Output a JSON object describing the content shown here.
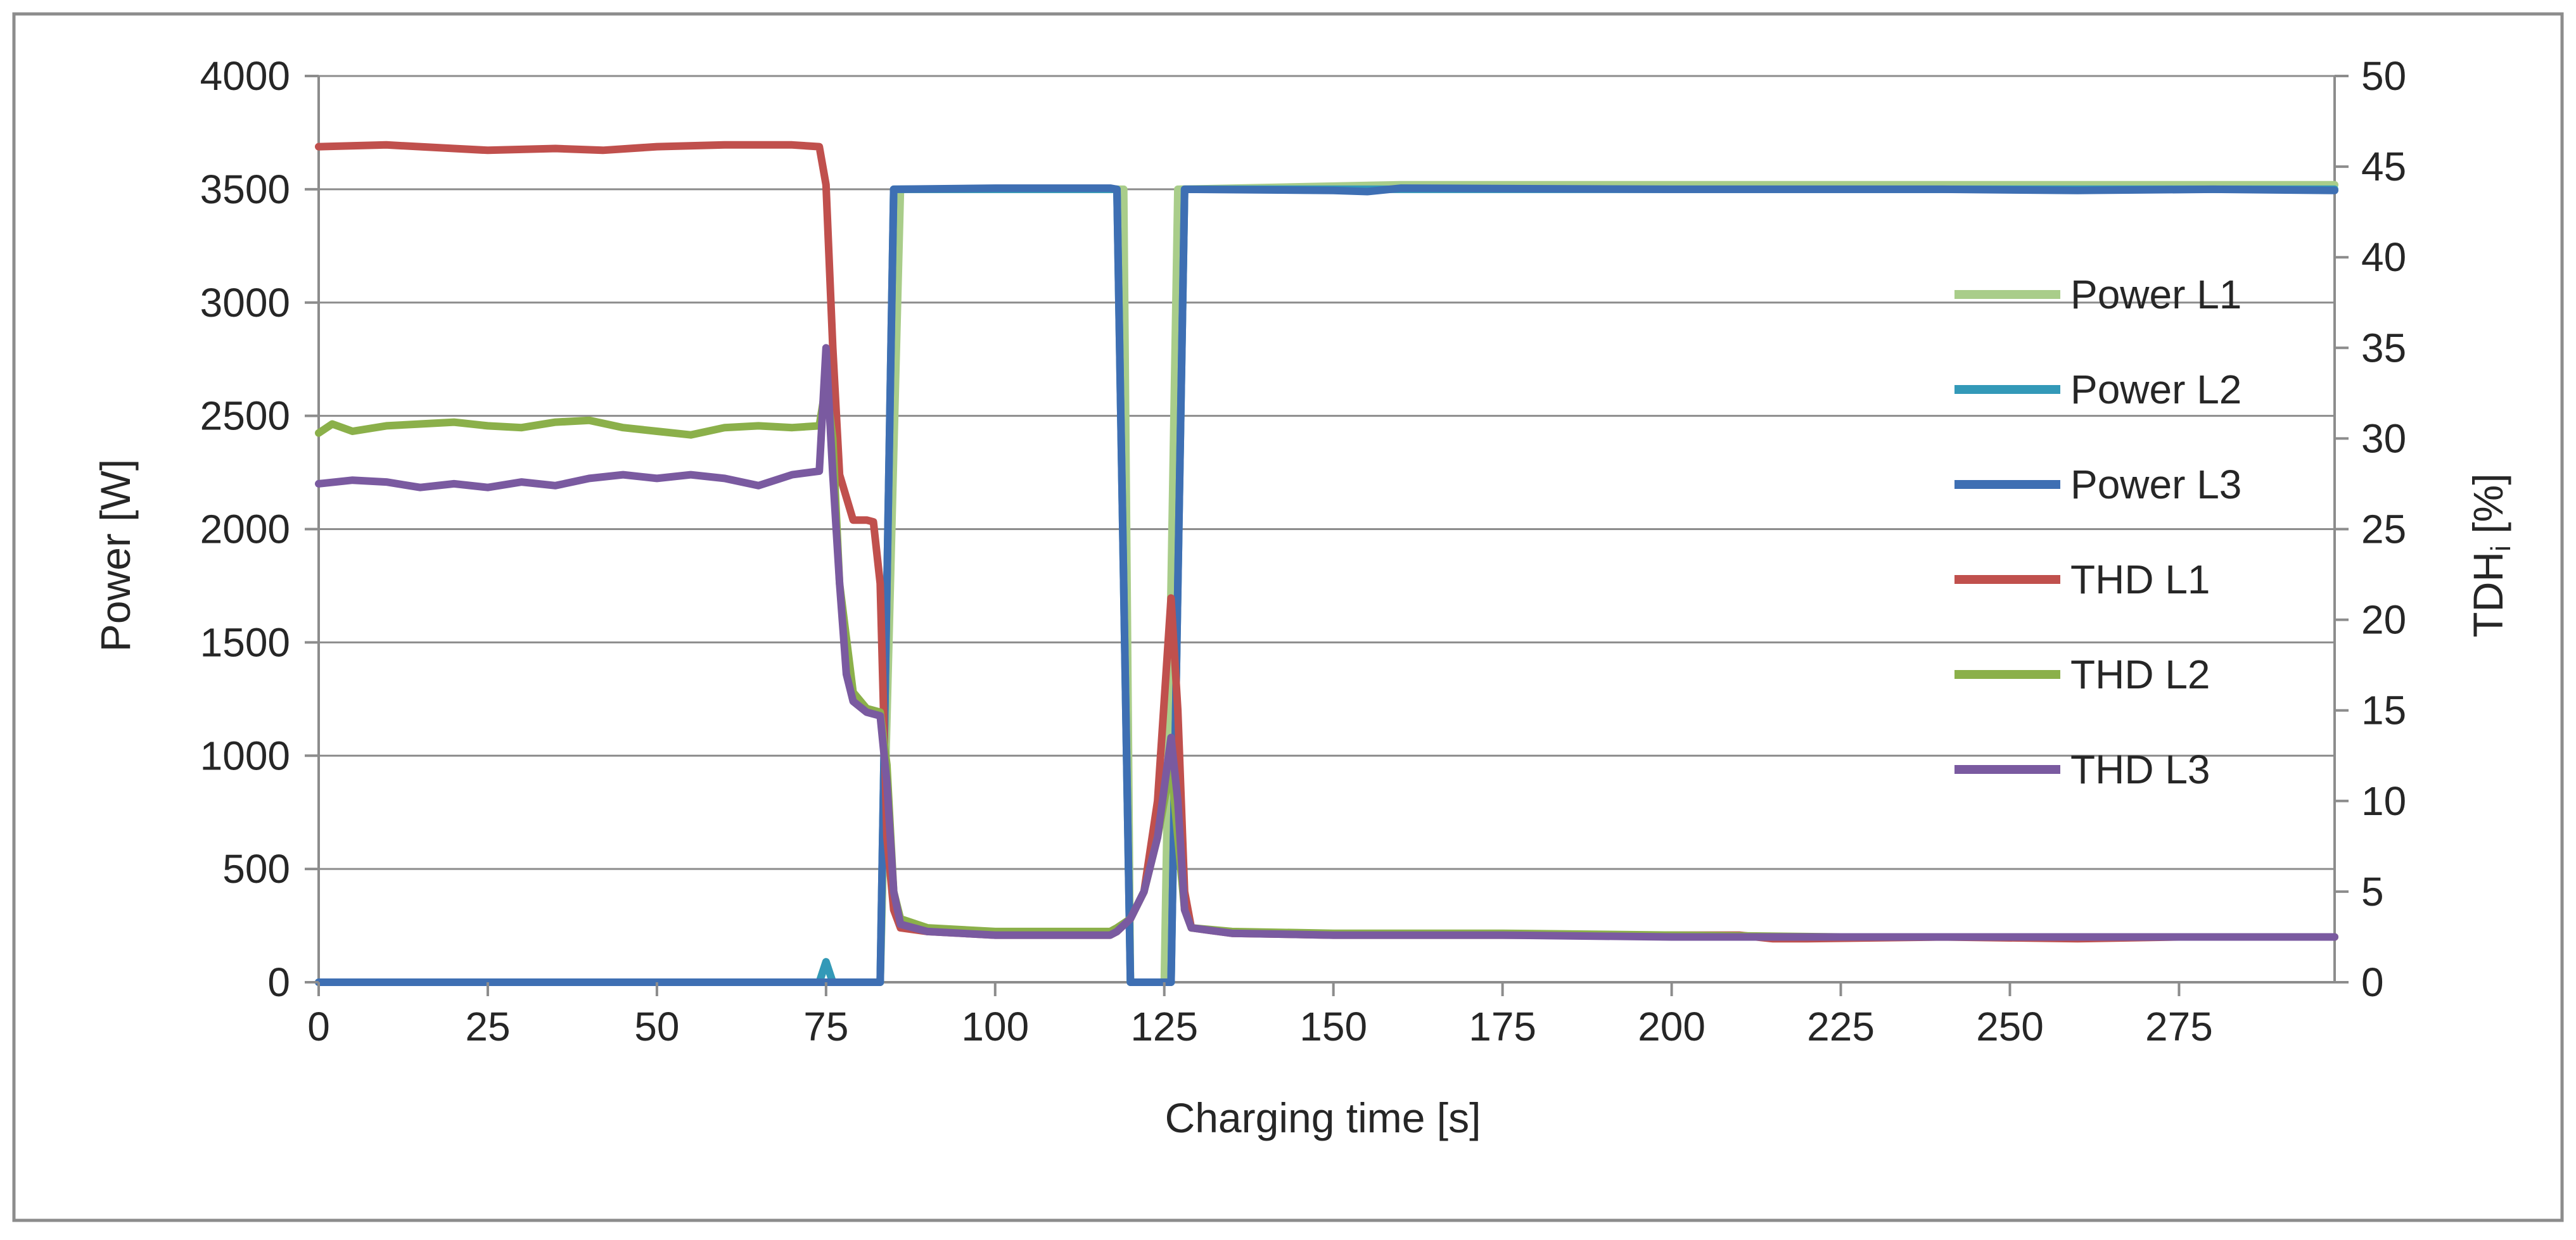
{
  "chart_data": {
    "type": "line",
    "title": "",
    "xlabel": "Charging time [s]",
    "ylabel_left": "Power  [W]",
    "ylabel_right_main": "TDH",
    "ylabel_right_sub": "i",
    "ylabel_right_unit": "  [%]",
    "xlim": [
      0,
      298
    ],
    "ylim_left": [
      0,
      4000
    ],
    "ylim_right": [
      0,
      50
    ],
    "x_ticks": [
      0,
      25,
      50,
      75,
      100,
      125,
      150,
      175,
      200,
      225,
      250,
      275
    ],
    "y_left_ticks": [
      0,
      500,
      1000,
      1500,
      2000,
      2500,
      3000,
      3500,
      4000
    ],
    "y_right_ticks": [
      0,
      5,
      10,
      15,
      20,
      25,
      30,
      35,
      40,
      45,
      50
    ],
    "grid": "horizontal",
    "legend_position": "right",
    "series": [
      {
        "name": "Power L1",
        "axis": "left",
        "color": "#a9cd8a",
        "points": [
          [
            0,
            0
          ],
          [
            74,
            0
          ],
          [
            75,
            90
          ],
          [
            76,
            0
          ],
          [
            83,
            0
          ],
          [
            86,
            3500
          ],
          [
            119,
            3500
          ],
          [
            120,
            0
          ],
          [
            125,
            0
          ],
          [
            127,
            3500
          ],
          [
            160,
            3520
          ],
          [
            298,
            3520
          ]
        ]
      },
      {
        "name": "Power L2",
        "axis": "left",
        "color": "#3399b8",
        "points": [
          [
            0,
            0
          ],
          [
            74,
            0
          ],
          [
            75,
            90
          ],
          [
            76,
            0
          ],
          [
            83,
            0
          ],
          [
            85,
            3500
          ],
          [
            118,
            3500
          ],
          [
            120,
            0
          ],
          [
            126,
            0
          ],
          [
            128,
            3500
          ],
          [
            298,
            3500
          ]
        ]
      },
      {
        "name": "Power L3",
        "axis": "left",
        "color": "#3e6fb3",
        "points": [
          [
            0,
            0
          ],
          [
            83,
            0
          ],
          [
            85,
            3500
          ],
          [
            100,
            3505
          ],
          [
            117,
            3505
          ],
          [
            118,
            3500
          ],
          [
            120,
            0
          ],
          [
            126,
            0
          ],
          [
            128,
            3500
          ],
          [
            150,
            3495
          ],
          [
            155,
            3490
          ],
          [
            160,
            3505
          ],
          [
            200,
            3500
          ],
          [
            240,
            3500
          ],
          [
            260,
            3495
          ],
          [
            280,
            3500
          ],
          [
            298,
            3495
          ]
        ]
      },
      {
        "name": "THD L1",
        "axis": "right",
        "color": "#c0504d",
        "points": [
          [
            0,
            46.1
          ],
          [
            10,
            46.2
          ],
          [
            20,
            46.0
          ],
          [
            25,
            45.9
          ],
          [
            35,
            46.0
          ],
          [
            42,
            45.9
          ],
          [
            50,
            46.1
          ],
          [
            60,
            46.2
          ],
          [
            70,
            46.2
          ],
          [
            74,
            46.1
          ],
          [
            75,
            44
          ],
          [
            76,
            35
          ],
          [
            77,
            28
          ],
          [
            79,
            25.5
          ],
          [
            81,
            25.5
          ],
          [
            82,
            25.4
          ],
          [
            83,
            22
          ],
          [
            84,
            8
          ],
          [
            85,
            4
          ],
          [
            86,
            3
          ],
          [
            90,
            2.8
          ],
          [
            100,
            2.6
          ],
          [
            110,
            2.6
          ],
          [
            117,
            2.6
          ],
          [
            118,
            2.8
          ],
          [
            120,
            3.5
          ],
          [
            122,
            5
          ],
          [
            124,
            10
          ],
          [
            126,
            21.2
          ],
          [
            127,
            15
          ],
          [
            128,
            5
          ],
          [
            129,
            3
          ],
          [
            135,
            2.7
          ],
          [
            150,
            2.6
          ],
          [
            175,
            2.6
          ],
          [
            200,
            2.6
          ],
          [
            210,
            2.6
          ],
          [
            215,
            2.4
          ],
          [
            220,
            2.4
          ],
          [
            240,
            2.5
          ],
          [
            260,
            2.4
          ],
          [
            275,
            2.5
          ],
          [
            298,
            2.5
          ]
        ]
      },
      {
        "name": "THD L2",
        "axis": "right",
        "color": "#8bb04a",
        "points": [
          [
            0,
            30.3
          ],
          [
            2,
            30.8
          ],
          [
            5,
            30.4
          ],
          [
            10,
            30.7
          ],
          [
            15,
            30.8
          ],
          [
            20,
            30.9
          ],
          [
            25,
            30.7
          ],
          [
            30,
            30.6
          ],
          [
            35,
            30.9
          ],
          [
            40,
            31.0
          ],
          [
            45,
            30.6
          ],
          [
            50,
            30.4
          ],
          [
            55,
            30.2
          ],
          [
            60,
            30.6
          ],
          [
            65,
            30.7
          ],
          [
            70,
            30.6
          ],
          [
            74,
            30.7
          ],
          [
            75,
            33
          ],
          [
            76,
            30
          ],
          [
            77,
            22
          ],
          [
            79,
            16
          ],
          [
            81,
            15.1
          ],
          [
            83,
            14.9
          ],
          [
            84,
            12
          ],
          [
            85,
            5
          ],
          [
            86,
            3.5
          ],
          [
            90,
            3
          ],
          [
            100,
            2.8
          ],
          [
            117,
            2.8
          ],
          [
            118,
            3
          ],
          [
            120,
            3.5
          ],
          [
            122,
            5
          ],
          [
            124,
            8
          ],
          [
            126,
            12
          ],
          [
            127,
            8
          ],
          [
            128,
            4
          ],
          [
            129,
            3
          ],
          [
            135,
            2.8
          ],
          [
            150,
            2.7
          ],
          [
            175,
            2.7
          ],
          [
            200,
            2.6
          ],
          [
            225,
            2.5
          ],
          [
            250,
            2.5
          ],
          [
            275,
            2.5
          ],
          [
            298,
            2.5
          ]
        ]
      },
      {
        "name": "THD L3",
        "axis": "right",
        "color": "#7a5aa0",
        "points": [
          [
            0,
            27.5
          ],
          [
            5,
            27.7
          ],
          [
            10,
            27.6
          ],
          [
            15,
            27.3
          ],
          [
            20,
            27.5
          ],
          [
            25,
            27.3
          ],
          [
            30,
            27.6
          ],
          [
            35,
            27.4
          ],
          [
            40,
            27.8
          ],
          [
            45,
            28.0
          ],
          [
            50,
            27.8
          ],
          [
            55,
            28.0
          ],
          [
            60,
            27.8
          ],
          [
            65,
            27.4
          ],
          [
            70,
            28.0
          ],
          [
            74,
            28.2
          ],
          [
            75,
            35
          ],
          [
            76,
            28
          ],
          [
            77,
            22
          ],
          [
            78,
            17
          ],
          [
            79,
            15.5
          ],
          [
            81,
            14.9
          ],
          [
            83,
            14.7
          ],
          [
            84,
            11
          ],
          [
            85,
            5
          ],
          [
            86,
            3.2
          ],
          [
            90,
            2.8
          ],
          [
            100,
            2.6
          ],
          [
            117,
            2.6
          ],
          [
            118,
            2.8
          ],
          [
            120,
            3.5
          ],
          [
            122,
            5
          ],
          [
            124,
            8
          ],
          [
            126,
            13.5
          ],
          [
            127,
            10
          ],
          [
            128,
            4
          ],
          [
            129,
            3
          ],
          [
            135,
            2.7
          ],
          [
            150,
            2.6
          ],
          [
            175,
            2.6
          ],
          [
            200,
            2.5
          ],
          [
            225,
            2.5
          ],
          [
            250,
            2.5
          ],
          [
            275,
            2.5
          ],
          [
            298,
            2.5
          ]
        ]
      }
    ]
  }
}
